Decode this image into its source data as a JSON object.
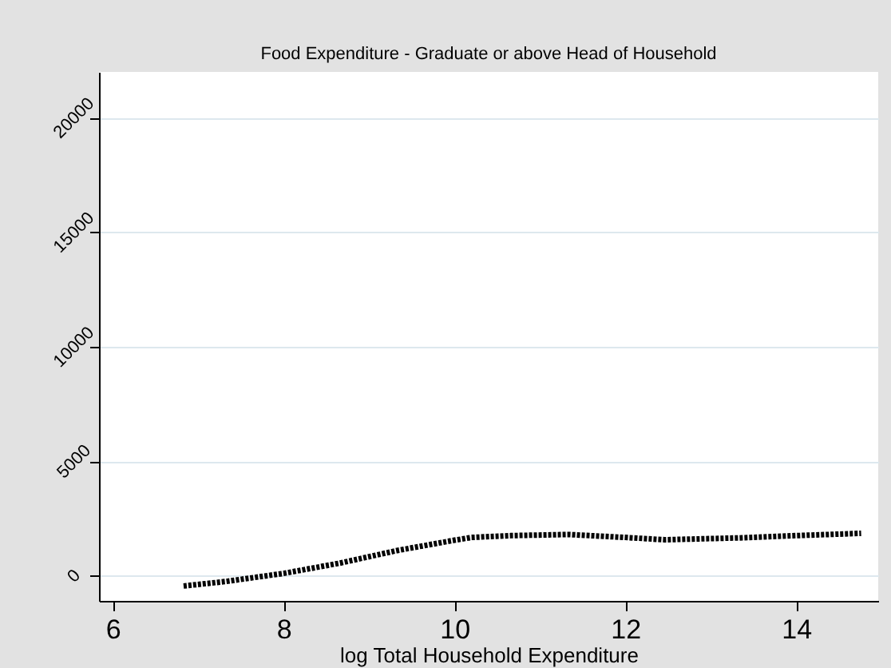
{
  "chart_data": {
    "type": "line",
    "title": "Food Expenditure - Graduate or above Head of Household",
    "xlabel": "log Total Household Expenditure",
    "x": [
      6.83,
      7.33,
      8.0,
      8.66,
      9.33,
      10.0,
      10.2,
      10.66,
      11.33,
      12.0,
      12.46,
      13.33,
      14.0,
      14.76
    ],
    "series": [
      {
        "color": "#000000",
        "values": [
          -450,
          -250,
          100,
          550,
          1100,
          1550,
          1670,
          1750,
          1800,
          1670,
          1570,
          1650,
          1750,
          1850
        ]
      }
    ],
    "xlim": [
      5.84,
      14.96
    ],
    "ylim": [
      -1100,
      22000
    ],
    "xticks": [
      6,
      8,
      10,
      12,
      14
    ],
    "yticks": [
      0,
      5000,
      10000,
      15000,
      20000
    ],
    "grid": "y",
    "line_style": "dashed",
    "marker": "none"
  }
}
